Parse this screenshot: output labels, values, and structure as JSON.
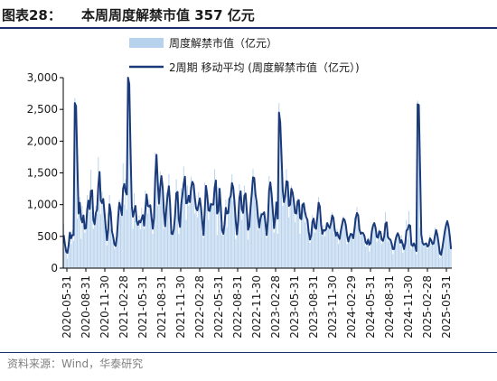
{
  "header": {
    "figure_label": "图表28：",
    "title": "本周周度解禁市值 357 亿元"
  },
  "source": "资料来源：Wind，华泰研究",
  "chart_data": {
    "type": "bar",
    "x_ticks": [
      "2020-05-31",
      "2020-08-31",
      "2020-11-30",
      "2021-02-28",
      "2021-05-31",
      "2021-08-31",
      "2021-11-30",
      "2022-02-28",
      "2022-05-31",
      "2022-08-31",
      "2022-11-30",
      "2023-02-28",
      "2023-05-31",
      "2023-08-31",
      "2023-11-30",
      "2024-02-29",
      "2024-05-31",
      "2024-08-31",
      "2024-11-30",
      "2025-02-28",
      "2025-05-31"
    ],
    "yticks": [
      0,
      500,
      1000,
      1500,
      2000,
      2500,
      3000
    ],
    "ytick_labels": [
      "0",
      "500",
      "1,000",
      "1,500",
      "2,000",
      "2,500",
      "3,000"
    ],
    "ylim": [
      0,
      3000
    ],
    "legend": {
      "placement": "top"
    },
    "series": [
      {
        "name": "周度解禁市值（亿元）",
        "kind": "bar",
        "color": "#b7d2ec",
        "values": [
          700,
          420,
          280,
          150,
          520,
          560,
          380,
          600,
          430,
          2680,
          2420,
          780,
          950,
          1120,
          460,
          980,
          680,
          560,
          700,
          1150,
          980,
          880,
          1550,
          900,
          620,
          760,
          980,
          860,
          1750,
          1280,
          850,
          1200,
          980,
          760,
          520,
          360,
          860,
          1150,
          620,
          540,
          450,
          300,
          400,
          600,
          980,
          1080,
          820,
          850,
          1650,
          1000,
          1400,
          920,
          3000,
          2850,
          960,
          1000,
          620,
          1180,
          780,
          700,
          660,
          830,
          610,
          950,
          720,
          620,
          1220,
          1100,
          860,
          1080,
          900,
          700,
          540,
          1050,
          1820,
          1750,
          980,
          1050,
          1520,
          1380,
          1160,
          620,
          700,
          1200,
          1100,
          1480,
          540,
          550,
          520,
          700,
          960,
          1400,
          1000,
          540,
          760,
          1260,
          1060,
          1600,
          1280,
          760,
          1300,
          980,
          1100,
          1440,
          1280,
          1350,
          860,
          1020,
          800,
          1200,
          1000,
          900,
          560,
          480,
          1350,
          1240,
          1060,
          760,
          1040,
          980,
          1020,
          980,
          1560,
          1200,
          520,
          1280,
          1220,
          680,
          520,
          560,
          820,
          1080,
          640,
          1100,
          1080,
          1200,
          1480,
          1060,
          1040,
          460,
          600,
          900,
          1320,
          1100,
          760,
          980,
          1300,
          1050,
          760,
          450,
          860,
          1050,
          1300,
          1560,
          1280,
          1040,
          1020,
          600,
          680,
          880,
          820,
          880,
          880,
          560,
          480,
          1000,
          1450,
          1250,
          1100,
          700,
          560,
          1050,
          1020,
          540,
          2600,
          2100,
          1480,
          980,
          1100,
          1180,
          1560,
          1160,
          800,
          1200,
          1300,
          1080,
          1020,
          720,
          1000,
          1100,
          1040,
          540,
          1000,
          1000,
          1040,
          720,
          880,
          640,
          500,
          400,
          620,
          840,
          720,
          560,
          680,
          940,
          1120,
          820,
          560,
          520,
          680,
          500,
          720,
          700,
          620,
          640,
          780,
          880,
          700,
          520,
          500,
          620,
          380,
          540,
          640,
          740,
          820,
          700,
          660,
          380,
          460,
          520,
          560,
          500,
          440,
          800,
          780,
          960,
          700,
          520,
          560,
          560,
          540,
          480,
          340,
          420,
          480,
          260,
          520,
          640,
          700,
          720,
          560,
          420,
          540,
          620,
          520,
          380,
          480,
          520,
          880,
          560,
          420,
          500,
          400,
          380,
          220,
          380,
          480,
          540,
          560,
          440,
          360,
          520,
          240,
          360,
          420,
          760,
          460,
          900,
          440,
          300,
          400,
          380,
          320,
          220,
          2640,
          2500,
          640,
          420,
          380,
          360,
          400,
          380,
          300,
          420,
          520,
          360,
          400,
          380,
          640,
          560,
          480,
          300,
          160,
          260,
          380,
          520,
          640,
          720,
          760,
          560,
          460,
          360
        ]
      },
      {
        "name": "2周期 移动平均 (周度解禁市值（亿元）)",
        "kind": "line",
        "color": "#1a3a7a",
        "values": [
          520,
          380,
          260,
          240,
          360,
          560,
          470,
          520,
          520,
          2600,
          2550,
          1700,
          860,
          1030,
          790,
          720,
          830,
          620,
          630,
          925,
          1065,
          930,
          1215,
          1225,
          760,
          690,
          870,
          920,
          1305,
          1515,
          1065,
          1025,
          1090,
          870,
          640,
          440,
          610,
          1005,
          885,
          580,
          495,
          375,
          350,
          500,
          790,
          1030,
          950,
          835,
          1250,
          1325,
          1200,
          1160,
          3000,
          2900,
          1900,
          980,
          810,
          900,
          980,
          740,
          680,
          745,
          720,
          780,
          835,
          670,
          920,
          1160,
          980,
          970,
          990,
          800,
          620,
          795,
          1435,
          1785,
          1365,
          1015,
          1285,
          1450,
          1270,
          890,
          660,
          950,
          1150,
          1290,
          1010,
          545,
          535,
          610,
          830,
          1180,
          1200,
          770,
          650,
          1010,
          1160,
          1330,
          1440,
          1020,
          1030,
          1140,
          1040,
          1270,
          1360,
          1315,
          1105,
          940,
          910,
          1000,
          1100,
          950,
          730,
          520,
          915,
          1295,
          1150,
          910,
          900,
          1010,
          1000,
          1000,
          1270,
          1380,
          860,
          900,
          1250,
          950,
          600,
          540,
          690,
          950,
          860,
          870,
          1090,
          1140,
          1340,
          1270,
          1050,
          750,
          530,
          750,
          1110,
          1210,
          930,
          870,
          1140,
          1175,
          905,
          605,
          655,
          955,
          1175,
          1430,
          1420,
          1160,
          1030,
          810,
          640,
          780,
          850,
          850,
          880,
          720,
          520,
          740,
          1225,
          1350,
          1175,
          900,
          630,
          805,
          1035,
          780,
          2450,
          2300,
          1790,
          1230,
          1040,
          1140,
          1370,
          1360,
          980,
          1000,
          1250,
          1190,
          1050,
          870,
          860,
          1050,
          1070,
          790,
          770,
          1000,
          1020,
          880,
          800,
          760,
          570,
          450,
          510,
          730,
          780,
          640,
          620,
          810,
          1030,
          970,
          690,
          540,
          600,
          590,
          610,
          710,
          660,
          630,
          710,
          830,
          790,
          610,
          510,
          560,
          500,
          460,
          590,
          690,
          780,
          760,
          680,
          520,
          420,
          490,
          540,
          530,
          470,
          620,
          790,
          870,
          830,
          610,
          540,
          560,
          550,
          510,
          410,
          380,
          450,
          370,
          390,
          580,
          670,
          710,
          640,
          490,
          480,
          580,
          570,
          450,
          430,
          500,
          700,
          720,
          490,
          460,
          450,
          390,
          300,
          300,
          430,
          510,
          550,
          500,
          400,
          440,
          380,
          300,
          390,
          590,
          610,
          680,
          670,
          370,
          350,
          390,
          350,
          270,
          2580,
          2570,
          1570,
          530,
          400,
          370,
          380,
          390,
          340,
          360,
          470,
          440,
          380,
          390,
          510,
          600,
          520,
          390,
          230,
          210,
          320,
          450,
          580,
          680,
          740,
          660,
          510,
          300
        ]
      }
    ]
  }
}
